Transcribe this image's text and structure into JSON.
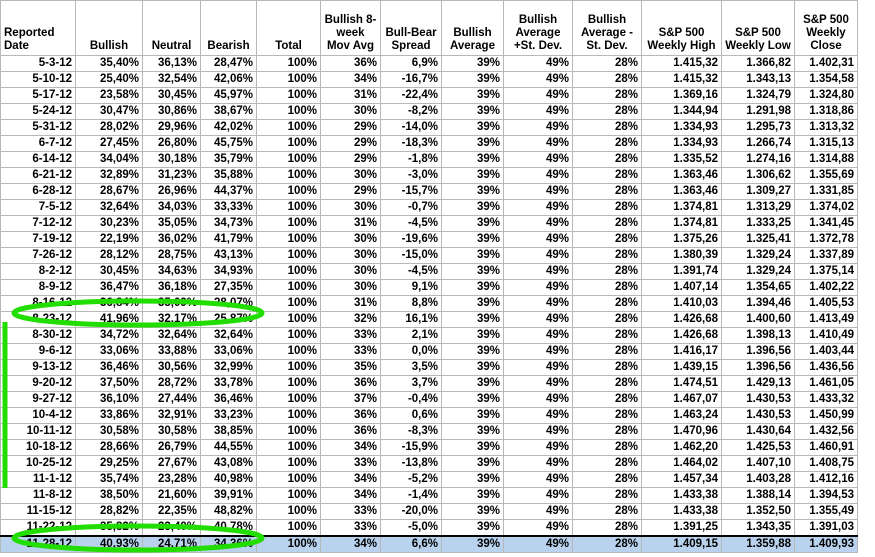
{
  "table": {
    "header": [
      "Reported Date",
      "Bullish",
      "Neutral",
      "Bearish",
      "Total",
      "Bullish 8-week Mov Avg",
      "Bull-Bear Spread",
      "Bullish Average",
      "Bullish Average +St. Dev.",
      "Bullish Average - St. Dev.",
      "S&P 500 Weekly High",
      "S&P 500 Weekly Low",
      "S&P 500 Weekly Close"
    ],
    "rows": [
      [
        "5-3-12",
        "35,40%",
        "36,13%",
        "28,47%",
        "100%",
        "36%",
        "6,9%",
        "39%",
        "49%",
        "28%",
        "1.415,32",
        "1.366,82",
        "1.402,31"
      ],
      [
        "5-10-12",
        "25,40%",
        "32,54%",
        "42,06%",
        "100%",
        "34%",
        "-16,7%",
        "39%",
        "49%",
        "28%",
        "1.415,32",
        "1.343,13",
        "1.354,58"
      ],
      [
        "5-17-12",
        "23,58%",
        "30,45%",
        "45,97%",
        "100%",
        "31%",
        "-22,4%",
        "39%",
        "49%",
        "28%",
        "1.369,16",
        "1.324,79",
        "1.324,80"
      ],
      [
        "5-24-12",
        "30,47%",
        "30,86%",
        "38,67%",
        "100%",
        "30%",
        "-8,2%",
        "39%",
        "49%",
        "28%",
        "1.344,94",
        "1.291,98",
        "1.318,86"
      ],
      [
        "5-31-12",
        "28,02%",
        "29,96%",
        "42,02%",
        "100%",
        "29%",
        "-14,0%",
        "39%",
        "49%",
        "28%",
        "1.334,93",
        "1.295,73",
        "1.313,32"
      ],
      [
        "6-7-12",
        "27,45%",
        "26,80%",
        "45,75%",
        "100%",
        "29%",
        "-18,3%",
        "39%",
        "49%",
        "28%",
        "1.334,93",
        "1.266,74",
        "1.315,13"
      ],
      [
        "6-14-12",
        "34,04%",
        "30,18%",
        "35,79%",
        "100%",
        "29%",
        "-1,8%",
        "39%",
        "49%",
        "28%",
        "1.335,52",
        "1.274,16",
        "1.314,88"
      ],
      [
        "6-21-12",
        "32,89%",
        "31,23%",
        "35,88%",
        "100%",
        "30%",
        "-3,0%",
        "39%",
        "49%",
        "28%",
        "1.363,46",
        "1.306,62",
        "1.355,69"
      ],
      [
        "6-28-12",
        "28,67%",
        "26,96%",
        "44,37%",
        "100%",
        "29%",
        "-15,7%",
        "39%",
        "49%",
        "28%",
        "1.363,46",
        "1.309,27",
        "1.331,85"
      ],
      [
        "7-5-12",
        "32,64%",
        "34,03%",
        "33,33%",
        "100%",
        "30%",
        "-0,7%",
        "39%",
        "49%",
        "28%",
        "1.374,81",
        "1.313,29",
        "1.374,02"
      ],
      [
        "7-12-12",
        "30,23%",
        "35,05%",
        "34,73%",
        "100%",
        "31%",
        "-4,5%",
        "39%",
        "49%",
        "28%",
        "1.374,81",
        "1.333,25",
        "1.341,45"
      ],
      [
        "7-19-12",
        "22,19%",
        "36,02%",
        "41,79%",
        "100%",
        "30%",
        "-19,6%",
        "39%",
        "49%",
        "28%",
        "1.375,26",
        "1.325,41",
        "1.372,78"
      ],
      [
        "7-26-12",
        "28,12%",
        "28,75%",
        "43,13%",
        "100%",
        "30%",
        "-15,0%",
        "39%",
        "49%",
        "28%",
        "1.380,39",
        "1.329,24",
        "1.337,89"
      ],
      [
        "8-2-12",
        "30,45%",
        "34,63%",
        "34,93%",
        "100%",
        "30%",
        "-4,5%",
        "39%",
        "49%",
        "28%",
        "1.391,74",
        "1.329,24",
        "1.375,14"
      ],
      [
        "8-9-12",
        "36,47%",
        "36,18%",
        "27,35%",
        "100%",
        "30%",
        "9,1%",
        "39%",
        "49%",
        "28%",
        "1.407,14",
        "1.354,65",
        "1.402,22"
      ],
      [
        "8-16-12",
        "36,84%",
        "35,09%",
        "28,07%",
        "100%",
        "31%",
        "8,8%",
        "39%",
        "49%",
        "28%",
        "1.410,03",
        "1.394,46",
        "1.405,53"
      ],
      [
        "8-23-12",
        "41,96%",
        "32,17%",
        "25,87%",
        "100%",
        "32%",
        "16,1%",
        "39%",
        "49%",
        "28%",
        "1.426,68",
        "1.400,60",
        "1.413,49"
      ],
      [
        "8-30-12",
        "34,72%",
        "32,64%",
        "32,64%",
        "100%",
        "33%",
        "2,1%",
        "39%",
        "49%",
        "28%",
        "1.426,68",
        "1.398,13",
        "1.410,49"
      ],
      [
        "9-6-12",
        "33,06%",
        "33,88%",
        "33,06%",
        "100%",
        "33%",
        "0,0%",
        "39%",
        "49%",
        "28%",
        "1.416,17",
        "1.396,56",
        "1.403,44"
      ],
      [
        "9-13-12",
        "36,46%",
        "30,56%",
        "32,99%",
        "100%",
        "35%",
        "3,5%",
        "39%",
        "49%",
        "28%",
        "1.439,15",
        "1.396,56",
        "1.436,56"
      ],
      [
        "9-20-12",
        "37,50%",
        "28,72%",
        "33,78%",
        "100%",
        "36%",
        "3,7%",
        "39%",
        "49%",
        "28%",
        "1.474,51",
        "1.429,13",
        "1.461,05"
      ],
      [
        "9-27-12",
        "36,10%",
        "27,44%",
        "36,46%",
        "100%",
        "37%",
        "-0,4%",
        "39%",
        "49%",
        "28%",
        "1.467,07",
        "1.430,53",
        "1.433,32"
      ],
      [
        "10-4-12",
        "33,86%",
        "32,91%",
        "33,23%",
        "100%",
        "36%",
        "0,6%",
        "39%",
        "49%",
        "28%",
        "1.463,24",
        "1.430,53",
        "1.450,99"
      ],
      [
        "10-11-12",
        "30,58%",
        "30,58%",
        "38,85%",
        "100%",
        "36%",
        "-8,3%",
        "39%",
        "49%",
        "28%",
        "1.470,96",
        "1.430,64",
        "1.432,56"
      ],
      [
        "10-18-12",
        "28,66%",
        "26,79%",
        "44,55%",
        "100%",
        "34%",
        "-15,9%",
        "39%",
        "49%",
        "28%",
        "1.462,20",
        "1.425,53",
        "1.460,91"
      ],
      [
        "10-25-12",
        "29,25%",
        "27,67%",
        "43,08%",
        "100%",
        "33%",
        "-13,8%",
        "39%",
        "49%",
        "28%",
        "1.464,02",
        "1.407,10",
        "1.408,75"
      ],
      [
        "11-1-12",
        "35,74%",
        "23,28%",
        "40,98%",
        "100%",
        "34%",
        "-5,2%",
        "39%",
        "49%",
        "28%",
        "1.457,34",
        "1.403,28",
        "1.412,16"
      ],
      [
        "11-8-12",
        "38,50%",
        "21,60%",
        "39,91%",
        "100%",
        "34%",
        "-1,4%",
        "39%",
        "49%",
        "28%",
        "1.433,38",
        "1.388,14",
        "1.394,53"
      ],
      [
        "11-15-12",
        "28,82%",
        "22,35%",
        "48,82%",
        "100%",
        "33%",
        "-20,0%",
        "39%",
        "49%",
        "28%",
        "1.433,38",
        "1.352,50",
        "1.355,49"
      ],
      [
        "11-22-12",
        "35,82%",
        "23,40%",
        "40,78%",
        "100%",
        "33%",
        "-5,0%",
        "39%",
        "49%",
        "28%",
        "1.391,25",
        "1.343,35",
        "1.391,03"
      ],
      [
        "11-28-12",
        "40,93%",
        "24,71%",
        "34,36%",
        "100%",
        "34%",
        "6,6%",
        "39%",
        "49%",
        "28%",
        "1.409,15",
        "1.359,88",
        "1.409,93"
      ]
    ]
  }
}
